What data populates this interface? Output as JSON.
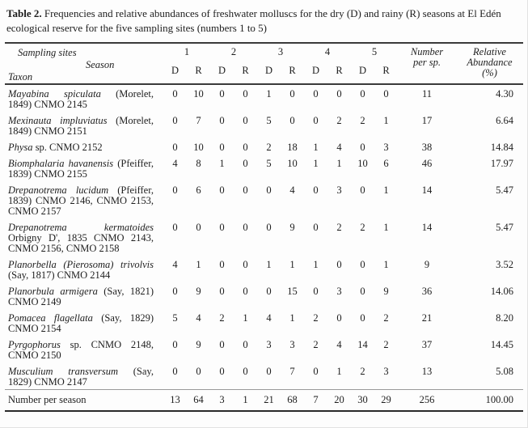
{
  "caption": {
    "label": "Table 2.",
    "text": "Frequencies and relative abundances of freshwater molluscs for the dry (D) and rainy (R) seasons at El Edén ecological reserve for the five sampling sites (numbers 1 to 5)"
  },
  "header": {
    "sampling_sites": "Sampling sites",
    "season": "Season",
    "taxon": "Taxon",
    "sites": [
      "1",
      "2",
      "3",
      "4",
      "5"
    ],
    "dr_row": [
      "D",
      "R",
      "D",
      "R",
      "D",
      "R",
      "D",
      "R",
      "D",
      "R"
    ],
    "number_per_sp": "Number per sp.",
    "relative_abundance": "Relative Abundance (%)"
  },
  "rows": [
    {
      "taxon_italic": "Mayabina spiculata",
      "taxon_roman": " (Morelet, 1849) CNMO 2145",
      "values": [
        0,
        10,
        0,
        0,
        1,
        0,
        0,
        0,
        0,
        0
      ],
      "total": 11,
      "abundance": "4.30"
    },
    {
      "taxon_italic": "Mexinauta impluviatus",
      "taxon_roman": " (Morelet, 1849) CNMO 2151",
      "values": [
        0,
        7,
        0,
        0,
        5,
        0,
        0,
        2,
        2,
        1
      ],
      "total": 17,
      "abundance": "6.64"
    },
    {
      "taxon_italic": "Physa",
      "taxon_roman": " sp. CNMO 2152",
      "values": [
        0,
        10,
        0,
        0,
        2,
        18,
        1,
        4,
        0,
        3
      ],
      "total": 38,
      "abundance": "14.84"
    },
    {
      "taxon_italic": "Biomphalaria havanensis",
      "taxon_roman": " (Pfeiffer, 1839) CNMO 2155",
      "values": [
        4,
        8,
        1,
        0,
        5,
        10,
        1,
        1,
        10,
        6
      ],
      "total": 46,
      "abundance": "17.97"
    },
    {
      "taxon_italic": "Drepanotrema lucidum",
      "taxon_roman": " (Pfeiffer, 1839) CNMO 2146, CNMO 2153, CNMO 2157",
      "values": [
        0,
        6,
        0,
        0,
        0,
        4,
        0,
        3,
        0,
        1
      ],
      "total": 14,
      "abundance": "5.47"
    },
    {
      "taxon_italic": "Drepanotrema kermatoides",
      "taxon_roman": " Orbigny D', 1835 CNMO 2143, CNMO 2156, CNMO 2158",
      "values": [
        0,
        0,
        0,
        0,
        0,
        9,
        0,
        2,
        2,
        1
      ],
      "total": 14,
      "abundance": "5.47"
    },
    {
      "taxon_italic": "Planorbella (Pierosoma) trivolvis",
      "taxon_roman": " (Say, 1817) CNMO 2144",
      "values": [
        4,
        1,
        0,
        0,
        1,
        1,
        1,
        0,
        0,
        1
      ],
      "total": 9,
      "abundance": "3.52"
    },
    {
      "taxon_italic": "Planorbula armigera",
      "taxon_roman": " (Say, 1821) CNMO 2149",
      "values": [
        0,
        9,
        0,
        0,
        0,
        15,
        0,
        3,
        0,
        9
      ],
      "total": 36,
      "abundance": "14.06"
    },
    {
      "taxon_italic": "Pomacea flagellata",
      "taxon_roman": " (Say, 1829) CNMO 2154",
      "values": [
        5,
        4,
        2,
        1,
        4,
        1,
        2,
        0,
        0,
        2
      ],
      "total": 21,
      "abundance": "8.20"
    },
    {
      "taxon_italic": "Pyrgophorus",
      "taxon_roman": " sp. CNMO 2148, CNMO 2150",
      "values": [
        0,
        9,
        0,
        0,
        3,
        3,
        2,
        4,
        14,
        2
      ],
      "total": 37,
      "abundance": "14.45"
    },
    {
      "taxon_italic": "Musculium transversum",
      "taxon_roman": " (Say, 1829) CNMO 2147",
      "values": [
        0,
        0,
        0,
        0,
        0,
        7,
        0,
        1,
        2,
        3
      ],
      "total": 13,
      "abundance": "5.08"
    }
  ],
  "footer": {
    "label": "Number per season",
    "values": [
      13,
      64,
      3,
      1,
      21,
      68,
      7,
      20,
      30,
      29
    ],
    "total": 256,
    "abundance": "100.00"
  }
}
